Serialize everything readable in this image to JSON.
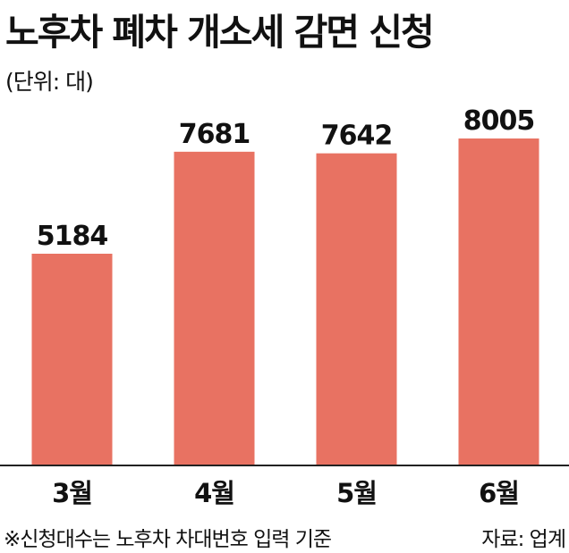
{
  "header": {
    "title": "노후차 폐차 개소세 감면 신청",
    "unit": "(단위: 대)"
  },
  "footer": {
    "note": "※신청대수는 노후차 차대번호 입력 기준",
    "source": "자료: 업계"
  },
  "colors": {
    "bar": "#e87262",
    "axis": "#222222",
    "text": "#111111"
  },
  "chart_data": {
    "type": "bar",
    "title": "노후차 폐차 개소세 감면 신청",
    "xlabel": "",
    "ylabel": "",
    "unit": "(단위: 대)",
    "categories": [
      "3월",
      "4월",
      "5월",
      "6월"
    ],
    "values": [
      5184,
      7681,
      7642,
      8005
    ],
    "ylim": [
      0,
      9000
    ],
    "grid": false,
    "legend": "none"
  }
}
